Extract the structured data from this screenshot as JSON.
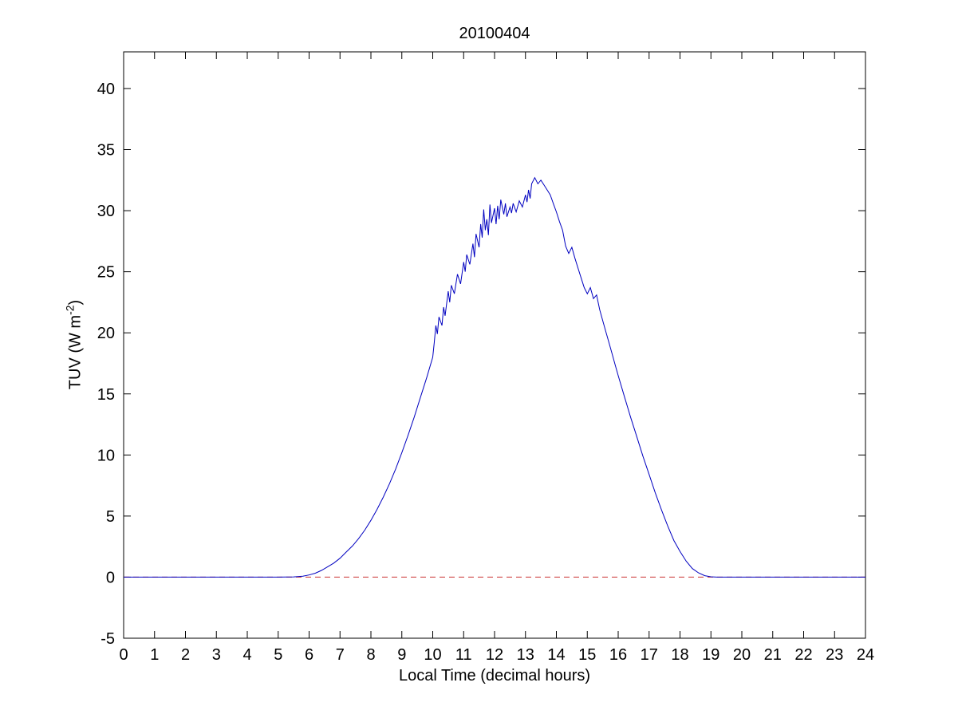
{
  "figure": {
    "title": "20100404",
    "xlabel": "Local Time (decimal hours)",
    "ylabel_prefix": "TUV (W m",
    "ylabel_sup": "-2",
    "ylabel_suffix": ")"
  },
  "chart_data": {
    "type": "line",
    "title": "20100404",
    "xlabel": "Local Time (decimal hours)",
    "ylabel": "TUV (W m^-2)",
    "xlim": [
      0,
      24
    ],
    "ylim": [
      -5,
      43
    ],
    "x_ticks": [
      0,
      1,
      2,
      3,
      4,
      5,
      6,
      7,
      8,
      9,
      10,
      11,
      12,
      13,
      14,
      15,
      16,
      17,
      18,
      19,
      20,
      21,
      22,
      23,
      24
    ],
    "y_ticks": [
      -5,
      0,
      5,
      10,
      15,
      20,
      25,
      30,
      35,
      40
    ],
    "grid": false,
    "legend": "none",
    "axis_color": "#000000",
    "background": "#ffffff",
    "series": [
      {
        "name": "TUV irradiance",
        "color": "#0000c0",
        "style": "solid",
        "points": [
          [
            0,
            0
          ],
          [
            1,
            0
          ],
          [
            2,
            0
          ],
          [
            3,
            0
          ],
          [
            4,
            0
          ],
          [
            5,
            0
          ],
          [
            5.5,
            0.02
          ],
          [
            5.8,
            0.08
          ],
          [
            6,
            0.18
          ],
          [
            6.2,
            0.32
          ],
          [
            6.4,
            0.55
          ],
          [
            6.6,
            0.85
          ],
          [
            6.8,
            1.15
          ],
          [
            7,
            1.55
          ],
          [
            7.2,
            2.05
          ],
          [
            7.4,
            2.55
          ],
          [
            7.6,
            3.15
          ],
          [
            7.8,
            3.85
          ],
          [
            8,
            4.65
          ],
          [
            8.2,
            5.55
          ],
          [
            8.4,
            6.55
          ],
          [
            8.6,
            7.65
          ],
          [
            8.8,
            8.85
          ],
          [
            9,
            10.2
          ],
          [
            9.2,
            11.6
          ],
          [
            9.4,
            13.1
          ],
          [
            9.6,
            14.7
          ],
          [
            9.8,
            16.3
          ],
          [
            10,
            18
          ],
          [
            10.05,
            19.2
          ],
          [
            10.1,
            20.6
          ],
          [
            10.15,
            19.9
          ],
          [
            10.2,
            21.3
          ],
          [
            10.3,
            20.6
          ],
          [
            10.35,
            22.1
          ],
          [
            10.4,
            21.4
          ],
          [
            10.5,
            23.4
          ],
          [
            10.55,
            22.5
          ],
          [
            10.6,
            23.9
          ],
          [
            10.7,
            23.2
          ],
          [
            10.8,
            24.8
          ],
          [
            10.9,
            24
          ],
          [
            11,
            25.8
          ],
          [
            11.05,
            25
          ],
          [
            11.1,
            26.4
          ],
          [
            11.2,
            25.6
          ],
          [
            11.3,
            27.3
          ],
          [
            11.35,
            26.2
          ],
          [
            11.4,
            28.1
          ],
          [
            11.5,
            27
          ],
          [
            11.55,
            28.9
          ],
          [
            11.6,
            27.8
          ],
          [
            11.65,
            30.1
          ],
          [
            11.7,
            28.4
          ],
          [
            11.75,
            29.3
          ],
          [
            11.8,
            28
          ],
          [
            11.85,
            30.5
          ],
          [
            11.9,
            29
          ],
          [
            12,
            30.2
          ],
          [
            12.05,
            28.9
          ],
          [
            12.1,
            30.4
          ],
          [
            12.15,
            29.3
          ],
          [
            12.2,
            30.9
          ],
          [
            12.3,
            29.7
          ],
          [
            12.35,
            30.6
          ],
          [
            12.4,
            29.5
          ],
          [
            12.5,
            30.3
          ],
          [
            12.55,
            29.8
          ],
          [
            12.6,
            30.6
          ],
          [
            12.7,
            29.9
          ],
          [
            12.8,
            30.8
          ],
          [
            12.9,
            30.3
          ],
          [
            13,
            31.3
          ],
          [
            13.05,
            30.7
          ],
          [
            13.1,
            31.7
          ],
          [
            13.15,
            31
          ],
          [
            13.2,
            32.2
          ],
          [
            13.3,
            32.7
          ],
          [
            13.4,
            32.2
          ],
          [
            13.5,
            32.5
          ],
          [
            13.6,
            32.1
          ],
          [
            13.7,
            31.7
          ],
          [
            13.8,
            31.3
          ],
          [
            13.9,
            30.6
          ],
          [
            14,
            29.9
          ],
          [
            14.1,
            29.1
          ],
          [
            14.2,
            28.4
          ],
          [
            14.3,
            27.1
          ],
          [
            14.4,
            26.5
          ],
          [
            14.5,
            27
          ],
          [
            14.6,
            26.1
          ],
          [
            14.7,
            25.3
          ],
          [
            14.8,
            24.5
          ],
          [
            14.9,
            23.7
          ],
          [
            15,
            23.2
          ],
          [
            15.1,
            23.7
          ],
          [
            15.2,
            22.8
          ],
          [
            15.3,
            23.1
          ],
          [
            15.4,
            21.9
          ],
          [
            15.5,
            21
          ],
          [
            15.6,
            20.1
          ],
          [
            15.7,
            19.2
          ],
          [
            15.8,
            18.3
          ],
          [
            15.9,
            17.4
          ],
          [
            16,
            16.5
          ],
          [
            16.2,
            14.8
          ],
          [
            16.4,
            13.1
          ],
          [
            16.6,
            11.5
          ],
          [
            16.8,
            9.9
          ],
          [
            17,
            8.4
          ],
          [
            17.2,
            6.9
          ],
          [
            17.4,
            5.5
          ],
          [
            17.6,
            4.2
          ],
          [
            17.8,
            3
          ],
          [
            18,
            2.1
          ],
          [
            18.2,
            1.3
          ],
          [
            18.4,
            0.7
          ],
          [
            18.6,
            0.35
          ],
          [
            18.8,
            0.12
          ],
          [
            19,
            0.03
          ],
          [
            19.2,
            0
          ],
          [
            20,
            0
          ],
          [
            21,
            0
          ],
          [
            22,
            0
          ],
          [
            23,
            0
          ],
          [
            24,
            0
          ]
        ]
      },
      {
        "name": "zero reference line",
        "color": "#cc3333",
        "style": "dashed",
        "points": [
          [
            0,
            0
          ],
          [
            24,
            0
          ]
        ]
      }
    ]
  }
}
